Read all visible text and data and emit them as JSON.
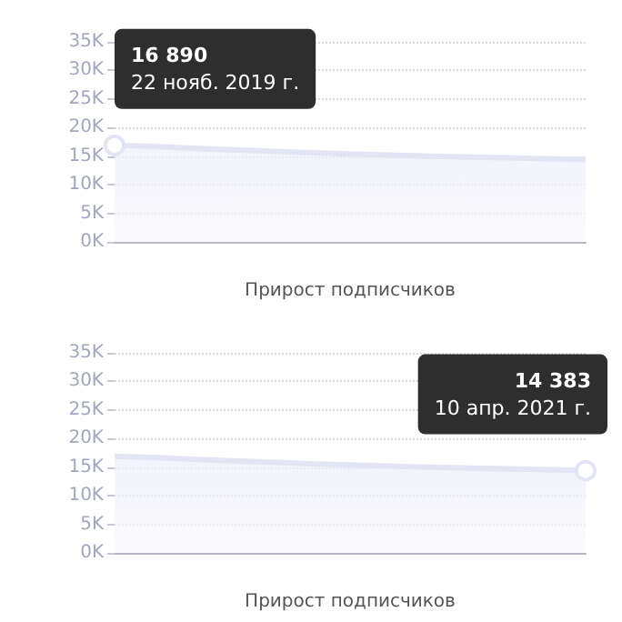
{
  "chart_data": [
    {
      "type": "area",
      "xlabel": "Прирост подписчиков",
      "categories": [
        null,
        null,
        null,
        null,
        null,
        null,
        null,
        null,
        null,
        null,
        null,
        null,
        null
      ],
      "series": [
        {
          "color": "#e3e5f3",
          "values": [
            16890,
            16700,
            16400,
            16100,
            15850,
            15600,
            15400,
            15200,
            15000,
            14850,
            14700,
            14550,
            14383
          ]
        }
      ],
      "ylim": [
        0,
        35000
      ],
      "yticks": [
        {
          "value": 0,
          "label": "0K"
        },
        {
          "value": 5000,
          "label": "5K"
        },
        {
          "value": 10000,
          "label": "10K"
        },
        {
          "value": 15000,
          "label": "15K"
        },
        {
          "value": 20000,
          "label": "20K"
        },
        {
          "value": 25000,
          "label": "25K"
        },
        {
          "value": 30000,
          "label": "30K"
        },
        {
          "value": 35000,
          "label": "35K"
        }
      ],
      "grid": "y",
      "tick_labels": "y",
      "marker": "none",
      "annotations": [
        {
          "text": "16 890\n22 нояб. 2019 г.",
          "y": 16890
        }
      ]
    },
    {
      "type": "area",
      "xlabel": "Прирост подписчиков",
      "categories": [
        null,
        null,
        null,
        null,
        null,
        null,
        null,
        null,
        null,
        null,
        null,
        null,
        null
      ],
      "series": [
        {
          "color": "#e3e5f3",
          "values": [
            16890,
            16700,
            16400,
            16100,
            15850,
            15600,
            15400,
            15200,
            15000,
            14850,
            14700,
            14550,
            14383
          ]
        }
      ],
      "ylim": [
        0,
        35000
      ],
      "yticks": [
        {
          "value": 0,
          "label": "0K"
        },
        {
          "value": 5000,
          "label": "5K"
        },
        {
          "value": 10000,
          "label": "10K"
        },
        {
          "value": 15000,
          "label": "15K"
        },
        {
          "value": 20000,
          "label": "20K"
        },
        {
          "value": 25000,
          "label": "25K"
        },
        {
          "value": 30000,
          "label": "30K"
        },
        {
          "value": 35000,
          "label": "35K"
        }
      ],
      "grid": "y",
      "tick_labels": "y",
      "marker": "none",
      "annotations": [
        {
          "text": "14 383\n10 апр. 2021 г.",
          "y": 14383
        }
      ]
    }
  ]
}
